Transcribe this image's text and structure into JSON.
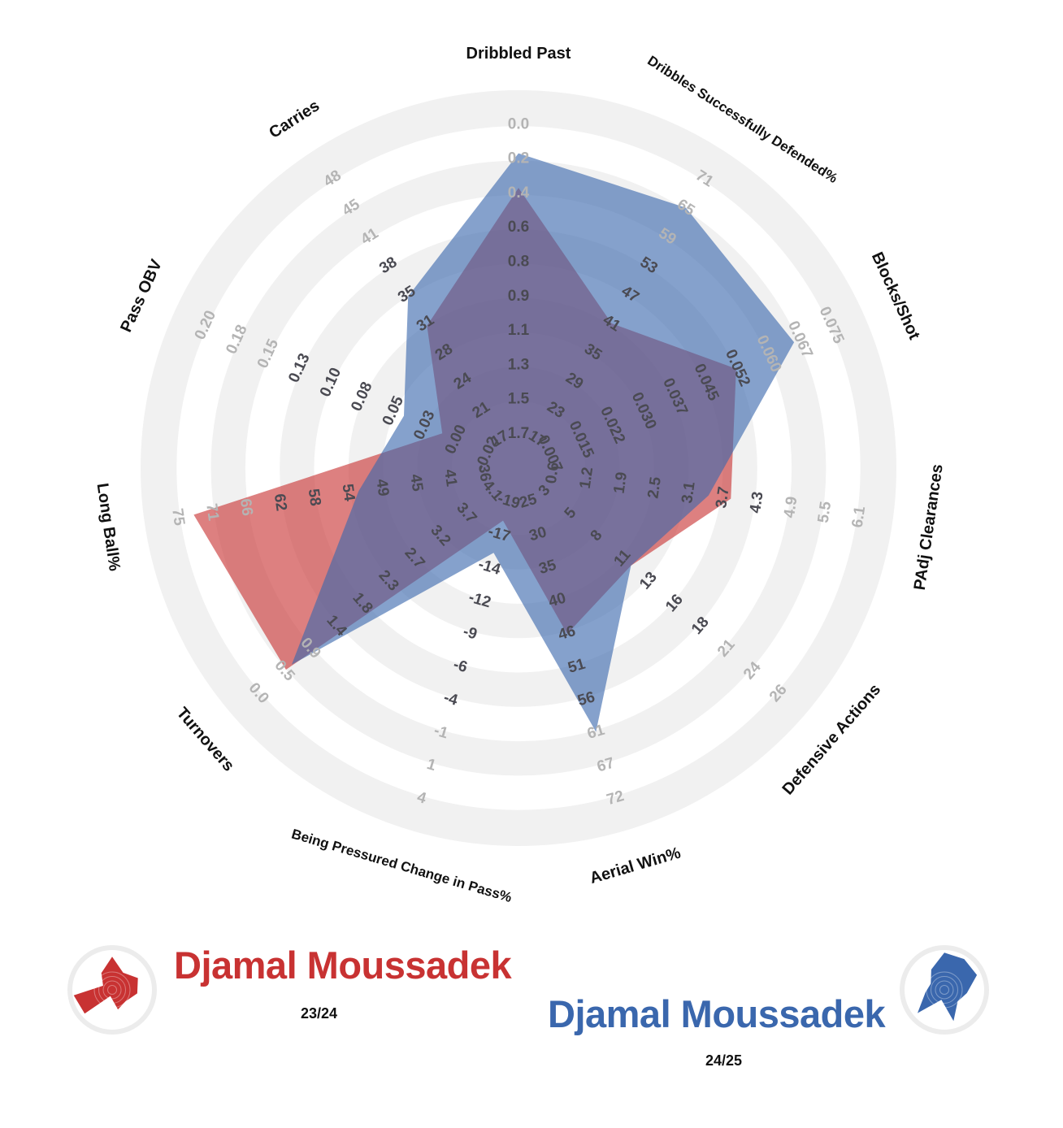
{
  "chart_data": {
    "type": "radar",
    "axes": [
      {
        "label": "Dribbled Past",
        "ticks": [
          "0.0",
          "0.2",
          "0.4",
          "0.6",
          "0.8",
          "0.9",
          "1.1",
          "1.3",
          "1.5",
          "1.7"
        ]
      },
      {
        "label": "Dribbles Successfully Defended%",
        "ticks": [
          "71",
          "65",
          "59",
          "53",
          "47",
          "41",
          "35",
          "29",
          "23",
          "17"
        ]
      },
      {
        "label": "Blocks/Shot",
        "ticks": [
          "0.075",
          "0.067",
          "0.060",
          "0.052",
          "0.045",
          "0.037",
          "0.030",
          "0.022",
          "0.015",
          "0.007"
        ]
      },
      {
        "label": "PAdj Clearances",
        "ticks": [
          "6.1",
          "5.5",
          "4.9",
          "4.3",
          "3.7",
          "3.1",
          "2.5",
          "1.9",
          "1.2",
          "0.6"
        ]
      },
      {
        "label": "Defensive Actions",
        "ticks": [
          "26",
          "24",
          "21",
          "18",
          "16",
          "13",
          "11",
          "8",
          "5",
          "3"
        ]
      },
      {
        "label": "Aerial Win%",
        "ticks": [
          "72",
          "67",
          "61",
          "56",
          "51",
          "46",
          "40",
          "35",
          "30",
          "25"
        ]
      },
      {
        "label": "Being Pressured Change in Pass%",
        "ticks": [
          "4",
          "1",
          "-1",
          "-4",
          "-6",
          "-9",
          "-12",
          "-14",
          "-17",
          "-19"
        ]
      },
      {
        "label": "Turnovers",
        "ticks": [
          "0.0",
          "0.5",
          "0.9",
          "1.4",
          "1.8",
          "2.3",
          "2.7",
          "3.2",
          "3.7",
          "4.1"
        ]
      },
      {
        "label": "Long Ball%",
        "ticks": [
          "75",
          "71",
          "66",
          "62",
          "58",
          "54",
          "49",
          "45",
          "41",
          "36"
        ]
      },
      {
        "label": "Pass OBV",
        "ticks": [
          "0.20",
          "0.18",
          "0.15",
          "0.13",
          "0.10",
          "0.08",
          "0.05",
          "0.03",
          "0.00",
          "-0.02"
        ]
      },
      {
        "label": "Carries",
        "ticks": [
          "48",
          "45",
          "41",
          "38",
          "35",
          "31",
          "28",
          "24",
          "21",
          "17"
        ]
      }
    ],
    "series": [
      {
        "name": "Djamal Moussadek",
        "season": "23/24",
        "color": "#c83232",
        "values": [
          0.35,
          41,
          0.052,
          3.8,
          11.5,
          46,
          -17.5,
          0.48,
          73,
          0.015,
          30.5
        ]
      },
      {
        "name": "Djamal Moussadek",
        "season": "24/25",
        "color": "#3a67ad",
        "values": [
          0.16,
          65,
          0.066,
          3.4,
          11.5,
          61.5,
          -15,
          0.58,
          52,
          0.045,
          34
        ]
      }
    ]
  }
}
